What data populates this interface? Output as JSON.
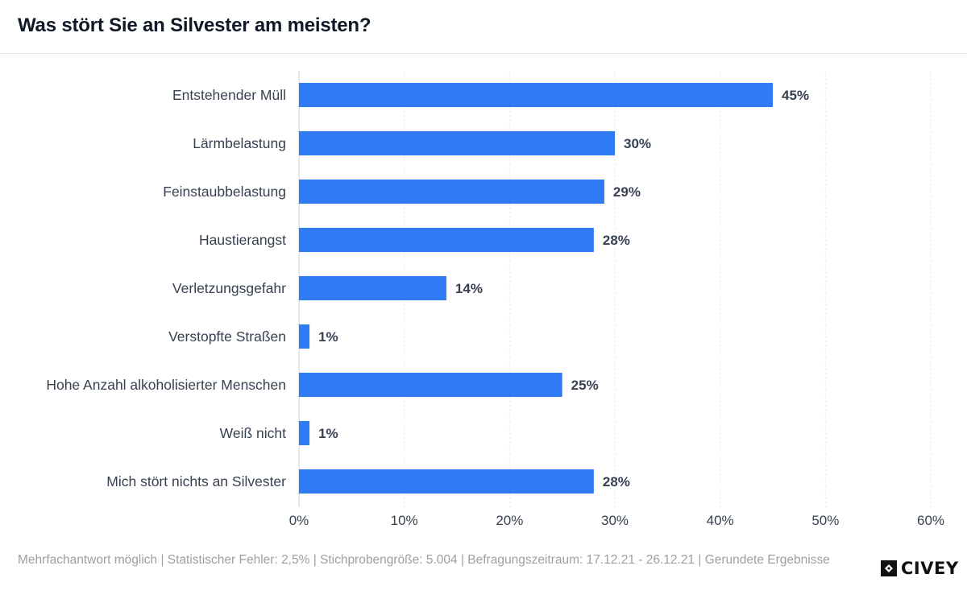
{
  "header": {
    "title": "Was stört Sie an Silvester am meisten?"
  },
  "chart_data": {
    "type": "bar",
    "orientation": "horizontal",
    "categories": [
      "Entstehender Müll",
      "Lärmbelastung",
      "Feinstaubbelastung",
      "Haustierangst",
      "Verletzungsgefahr",
      "Verstopfte Straßen",
      "Hohe Anzahl alkoholisierter Menschen",
      "Weiß nicht",
      "Mich stört nichts an Silvester"
    ],
    "values": [
      45,
      30,
      29,
      28,
      14,
      1,
      25,
      1,
      28
    ],
    "value_labels": [
      "45%",
      "30%",
      "29%",
      "28%",
      "14%",
      "1%",
      "25%",
      "1%",
      "28%"
    ],
    "xlim": [
      0,
      60
    ],
    "x_ticks": [
      0,
      10,
      20,
      30,
      40,
      50,
      60
    ],
    "x_tick_labels": [
      "0%",
      "10%",
      "20%",
      "30%",
      "40%",
      "50%",
      "60%"
    ],
    "grid": true,
    "bar_color": "#2f7bf5"
  },
  "footer": {
    "note": "Mehrfachantwort möglich | Statistischer Fehler: 2,5% | Stichprobengröße: 5.004 | Befragungszeitraum: 17.12.21 - 26.12.21 | Gerundete Ergebnisse"
  },
  "brand": {
    "logo_text": "CIVEY",
    "logo_icon": "civey-logo-icon"
  }
}
